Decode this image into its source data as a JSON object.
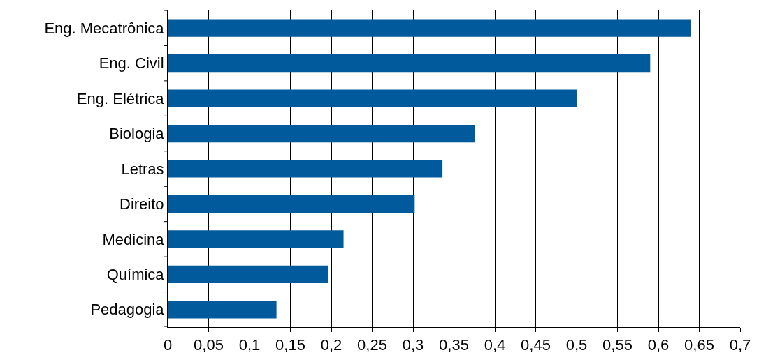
{
  "chart_data": {
    "type": "bar",
    "orientation": "horizontal",
    "categories": [
      "Eng. Mecatrônica",
      "Eng. Civil",
      "Eng. Elétrica",
      "Biologia",
      "Letras",
      "Direito",
      "Medicina",
      "Química",
      "Pedagogia"
    ],
    "values": [
      0.64,
      0.59,
      0.5,
      0.376,
      0.336,
      0.302,
      0.215,
      0.196,
      0.133
    ],
    "color": "#005a9c",
    "xlim": [
      0,
      0.7
    ],
    "xticks": [
      0,
      {
        "value": 0.05,
        "label": "0,05"
      },
      {
        "value": 0.1,
        "label": "0,1"
      },
      {
        "value": 0.15,
        "label": "0,15"
      },
      {
        "value": 0.2,
        "label": "0,2"
      },
      {
        "value": 0.25,
        "label": "0,25"
      },
      {
        "value": 0.3,
        "label": "0,3"
      },
      {
        "value": 0.35,
        "label": "0,35"
      },
      {
        "value": 0.4,
        "label": "0,4"
      },
      {
        "value": 0.45,
        "label": "0,45"
      },
      {
        "value": 0.5,
        "label": "0,5"
      },
      {
        "value": 0.55,
        "label": "0,55"
      },
      {
        "value": 0.6,
        "label": "0,6"
      },
      {
        "value": 0.65,
        "label": "0,65"
      },
      {
        "value": 0.7,
        "label": "0,7"
      }
    ],
    "grid": "x"
  }
}
